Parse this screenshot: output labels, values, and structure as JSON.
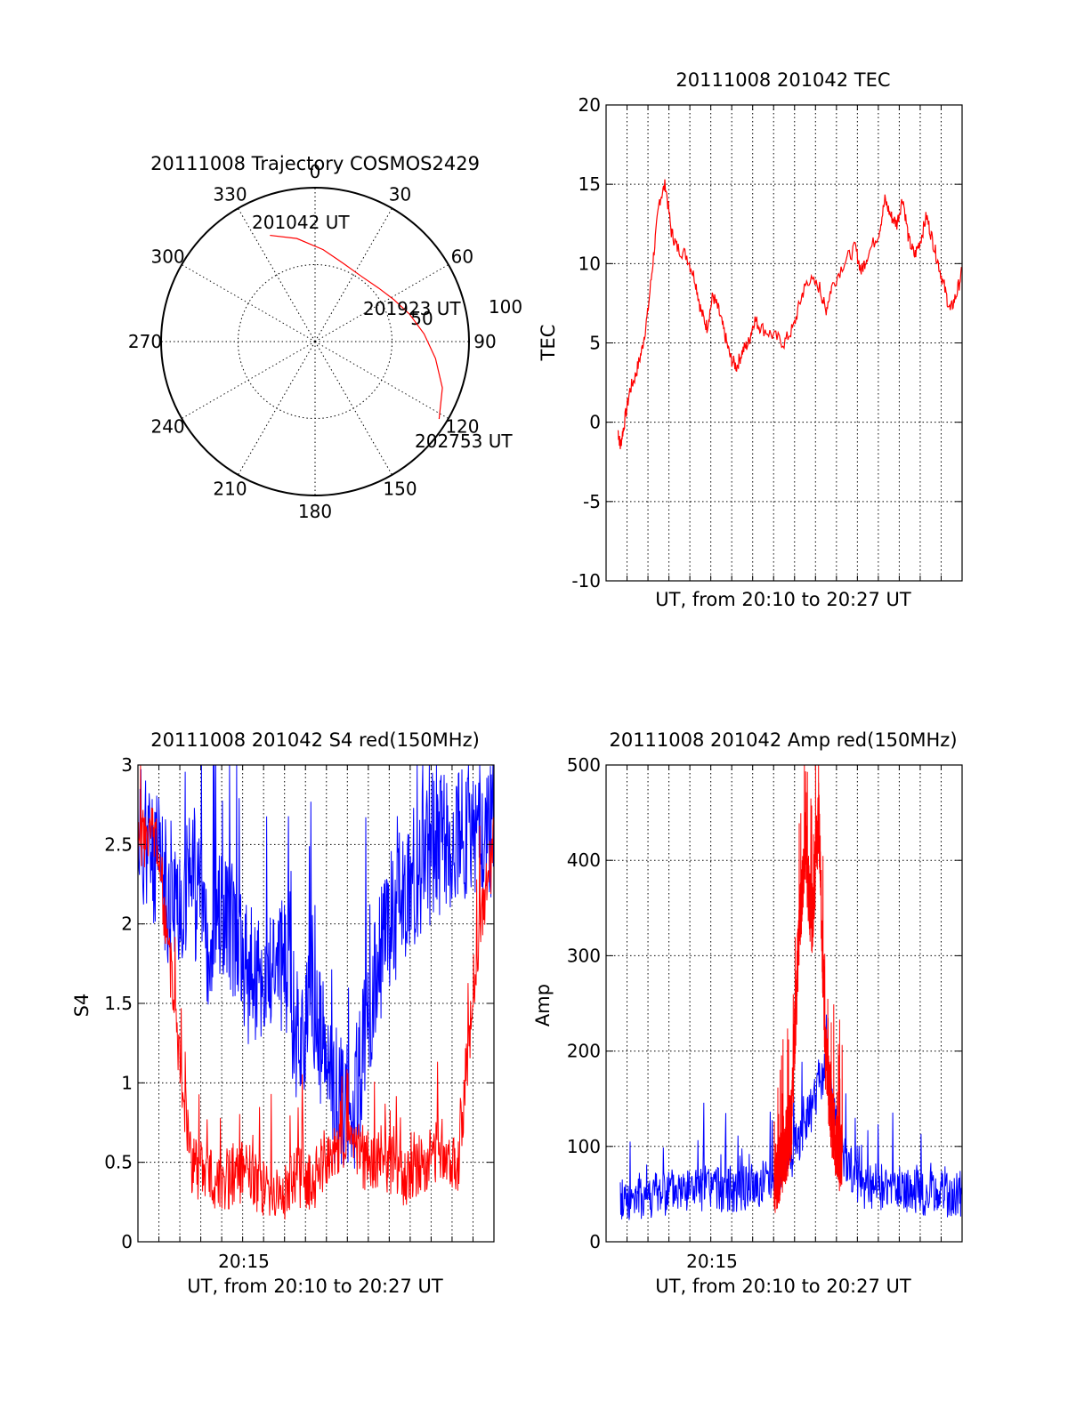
{
  "chart_data": [
    {
      "type": "polar",
      "title": "20111008 Trajectory COSMOS2429",
      "angle_labels": [
        "0",
        "30",
        "60",
        "90",
        "120",
        "150",
        "180",
        "210",
        "240",
        "270",
        "300",
        "330"
      ],
      "radial_labels": [
        "50",
        "100"
      ],
      "rlim": [
        0,
        100
      ],
      "series": [
        {
          "color": "#ff0000",
          "points_az_r": [
            [
              -23,
              75
            ],
            [
              -10,
              68
            ],
            [
              5,
              60
            ],
            [
              20,
              54
            ],
            [
              35,
              52
            ],
            [
              50,
              54
            ],
            [
              62,
              58
            ],
            [
              74,
              64
            ],
            [
              86,
              71
            ],
            [
              98,
              79
            ],
            [
              110,
              88
            ],
            [
              122,
              95
            ]
          ]
        }
      ],
      "annotations": [
        "201042 UT",
        "201923 UT",
        "202753 UT"
      ]
    },
    {
      "type": "line",
      "title": "20111008 201042 TEC",
      "xlabel": "UT, from 20:10 to 20:27 UT",
      "ylabel": "TEC",
      "yticks": [
        "-10",
        "-5",
        "0",
        "5",
        "10",
        "15",
        "20"
      ],
      "ylim": [
        -10,
        20
      ],
      "xlim": [
        20.16,
        20.46
      ],
      "grid": true,
      "series": [
        {
          "color": "#ff0000",
          "points": [
            [
              20.17,
              -0.5
            ],
            [
              20.172,
              -1.5
            ],
            [
              20.175,
              -0.2
            ],
            [
              20.18,
              2.0
            ],
            [
              20.185,
              3.0
            ],
            [
              20.19,
              4.5
            ],
            [
              20.195,
              6.8
            ],
            [
              20.2,
              10.5
            ],
            [
              20.205,
              14.0
            ],
            [
              20.21,
              15.0
            ],
            [
              20.215,
              12.0
            ],
            [
              20.22,
              11.0
            ],
            [
              20.228,
              10.5
            ],
            [
              20.235,
              9.0
            ],
            [
              20.24,
              7.0
            ],
            [
              20.245,
              6.0
            ],
            [
              20.25,
              8.0
            ],
            [
              20.255,
              7.0
            ],
            [
              20.26,
              5.5
            ],
            [
              20.265,
              4.0
            ],
            [
              20.27,
              3.5
            ],
            [
              20.275,
              4.5
            ],
            [
              20.28,
              5.0
            ],
            [
              20.285,
              6.5
            ],
            [
              20.29,
              6.0
            ],
            [
              20.3,
              5.5
            ],
            [
              20.31,
              5.0
            ],
            [
              20.318,
              6.0
            ],
            [
              20.325,
              8.0
            ],
            [
              20.33,
              9.0
            ],
            [
              20.34,
              8.5
            ],
            [
              20.345,
              7.0
            ],
            [
              20.35,
              8.5
            ],
            [
              20.36,
              10.0
            ],
            [
              20.37,
              11.0
            ],
            [
              20.375,
              9.5
            ],
            [
              20.38,
              10.5
            ],
            [
              20.39,
              12.0
            ],
            [
              20.395,
              14.0
            ],
            [
              20.4,
              13.0
            ],
            [
              20.405,
              12.5
            ],
            [
              20.41,
              14.2
            ],
            [
              20.415,
              11.5
            ],
            [
              20.42,
              10.5
            ],
            [
              20.425,
              11.5
            ],
            [
              20.43,
              13.0
            ],
            [
              20.435,
              11.5
            ],
            [
              20.44,
              10.0
            ],
            [
              20.445,
              8.5
            ],
            [
              20.45,
              7.0
            ],
            [
              20.455,
              8.0
            ],
            [
              20.46,
              9.5
            ]
          ]
        }
      ]
    },
    {
      "type": "line",
      "title": "20111008 201042 S4 red(150MHz)",
      "xlabel": "UT, from 20:10 to 20:27 UT",
      "ylabel": "S4",
      "yticks": [
        "0",
        "0.5",
        "1",
        "1.5",
        "2",
        "2.5",
        "3"
      ],
      "xticks": [
        "20:15"
      ],
      "ylim": [
        0,
        3
      ],
      "grid": true,
      "series": [
        {
          "name": "",
          "color": "#0000ff",
          "points": [
            [
              0.0,
              2.6
            ],
            [
              0.05,
              2.4
            ],
            [
              0.1,
              2.1
            ],
            [
              0.15,
              2.3
            ],
            [
              0.2,
              1.9
            ],
            [
              0.25,
              2.1
            ],
            [
              0.3,
              1.7
            ],
            [
              0.35,
              1.6
            ],
            [
              0.4,
              1.8
            ],
            [
              0.45,
              1.3
            ],
            [
              0.5,
              1.4
            ],
            [
              0.55,
              0.9
            ],
            [
              0.6,
              0.8
            ],
            [
              0.65,
              1.4
            ],
            [
              0.7,
              2.0
            ],
            [
              0.75,
              2.2
            ],
            [
              0.8,
              2.4
            ],
            [
              0.85,
              2.5
            ],
            [
              0.9,
              2.6
            ],
            [
              0.95,
              2.6
            ],
            [
              1.0,
              2.6
            ]
          ]
        },
        {
          "name": "",
          "color": "#ff0000",
          "points": [
            [
              0.0,
              2.5
            ],
            [
              0.05,
              2.6
            ],
            [
              0.1,
              1.5
            ],
            [
              0.15,
              0.5
            ],
            [
              0.2,
              0.4
            ],
            [
              0.25,
              0.4
            ],
            [
              0.3,
              0.45
            ],
            [
              0.35,
              0.35
            ],
            [
              0.4,
              0.3
            ],
            [
              0.45,
              0.4
            ],
            [
              0.5,
              0.4
            ],
            [
              0.55,
              0.6
            ],
            [
              0.6,
              0.6
            ],
            [
              0.65,
              0.5
            ],
            [
              0.7,
              0.5
            ],
            [
              0.75,
              0.4
            ],
            [
              0.8,
              0.5
            ],
            [
              0.85,
              0.6
            ],
            [
              0.9,
              0.5
            ],
            [
              0.95,
              1.8
            ],
            [
              1.0,
              2.5
            ]
          ]
        }
      ]
    },
    {
      "type": "line",
      "title": "20111008 201042 Amp red(150MHz)",
      "xlabel": "UT, from 20:10 to 20:27 UT",
      "ylabel": "Amp",
      "yticks": [
        "0",
        "100",
        "200",
        "300",
        "400",
        "500"
      ],
      "xticks": [
        "20:15"
      ],
      "ylim": [
        0,
        500
      ],
      "grid": true,
      "series": [
        {
          "name": "",
          "color": "#0000ff",
          "points": [
            [
              0.0,
              45
            ],
            [
              0.1,
              50
            ],
            [
              0.2,
              55
            ],
            [
              0.3,
              55
            ],
            [
              0.4,
              58
            ],
            [
              0.45,
              70
            ],
            [
              0.5,
              90
            ],
            [
              0.55,
              130
            ],
            [
              0.6,
              180
            ],
            [
              0.65,
              90
            ],
            [
              0.7,
              60
            ],
            [
              0.8,
              55
            ],
            [
              0.9,
              50
            ],
            [
              1.0,
              50
            ]
          ]
        },
        {
          "name": "",
          "color": "#ff0000",
          "points": [
            [
              0.45,
              60
            ],
            [
              0.5,
              120
            ],
            [
              0.52,
              300
            ],
            [
              0.54,
              420
            ],
            [
              0.56,
              330
            ],
            [
              0.58,
              450
            ],
            [
              0.6,
              200
            ],
            [
              0.62,
              120
            ],
            [
              0.65,
              80
            ]
          ]
        }
      ]
    }
  ]
}
